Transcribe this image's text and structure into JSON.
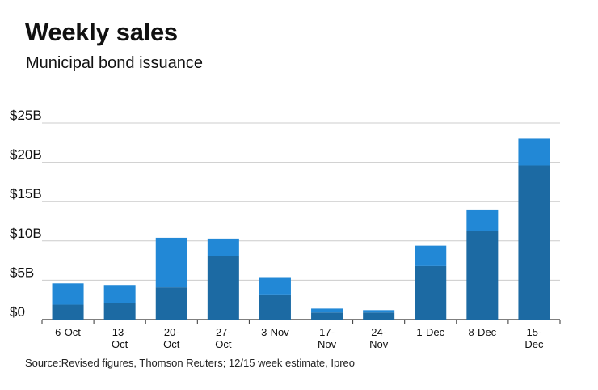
{
  "colors": {
    "base": "#1c6aa3",
    "top": "#2288d6",
    "grid": "#cccccc",
    "axis": "#333333"
  },
  "chart_data": {
    "type": "bar",
    "stacked": true,
    "title": "Weekly sales",
    "subtitle": "Municipal bond issuance",
    "source": "Source:Revised figures, Thomson Reuters; 12/15 week estimate, Ipreo",
    "categories": [
      [
        "6-Oct"
      ],
      [
        "13-",
        "Oct"
      ],
      [
        "20-",
        "Oct"
      ],
      [
        "27-",
        "Oct"
      ],
      [
        "3-Nov"
      ],
      [
        "17-",
        "Nov"
      ],
      [
        "24-",
        "Nov"
      ],
      [
        "1-Dec"
      ],
      [
        "8-Dec"
      ],
      [
        "15-",
        "Dec"
      ]
    ],
    "series": [
      {
        "values": [
          1.9,
          2.1,
          4.1,
          8.1,
          3.2,
          0.9,
          0.9,
          6.8,
          11.3,
          19.6
        ]
      },
      {
        "values": [
          2.7,
          2.3,
          6.3,
          2.2,
          2.2,
          0.5,
          0.3,
          2.6,
          2.7,
          3.4
        ]
      }
    ],
    "yticks": [
      "$25B",
      "$20B",
      "$15B",
      "$10B",
      "$5B",
      "$0"
    ],
    "ytick_values": [
      25,
      20,
      15,
      10,
      5,
      0
    ],
    "ylim": [
      0,
      25
    ],
    "grid": true
  }
}
